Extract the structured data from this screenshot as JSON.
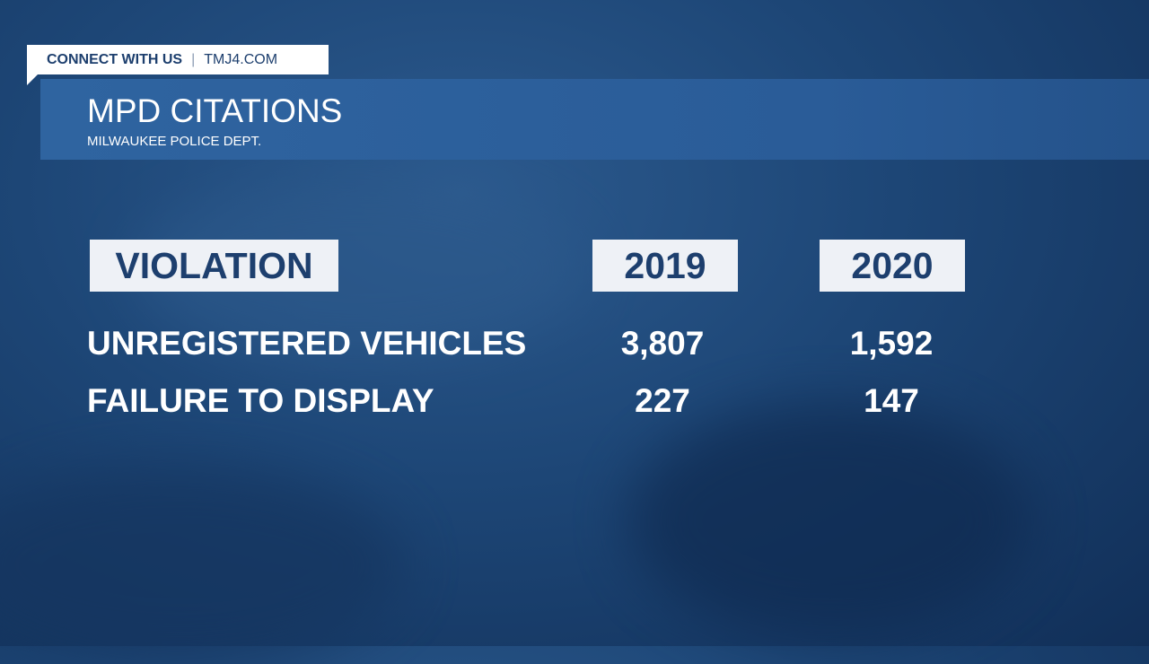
{
  "banner": {
    "label": "CONNECT WITH US",
    "site": "TMJ4.COM"
  },
  "header": {
    "title": "MPD CITATIONS",
    "subtitle": "MILWAUKEE POLICE DEPT."
  },
  "table": {
    "columns": [
      "VIOLATION",
      "2019",
      "2020"
    ],
    "rows": [
      [
        "UNREGISTERED VEHICLES",
        "3,807",
        "1,592"
      ],
      [
        "FAILURE TO DISPLAY",
        "227",
        "147"
      ]
    ]
  }
}
